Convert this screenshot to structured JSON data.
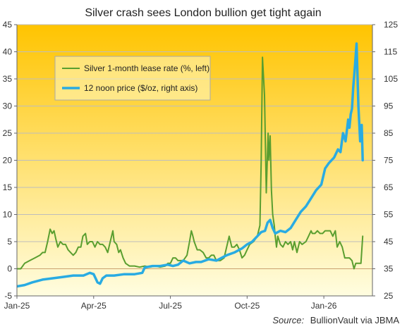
{
  "chart_data": {
    "type": "line",
    "title": "Silver crash sees London bullion get tight again",
    "source_label": "Source:",
    "source_text": "BullionVault via JBMA",
    "x_ticks": [
      "Jan-25",
      "Apr-25",
      "Jul-25",
      "Oct-25",
      "Jan-26"
    ],
    "x_tick_months": [
      0,
      3,
      6,
      9,
      12
    ],
    "xlim": [
      0,
      13.9
    ],
    "y_left": {
      "lim": [
        -5,
        45
      ],
      "ticks": [
        -5,
        0,
        5,
        10,
        15,
        20,
        25,
        30,
        35,
        40,
        45
      ]
    },
    "y_right": {
      "lim": [
        25,
        125
      ],
      "ticks": [
        25,
        35,
        45,
        55,
        65,
        75,
        85,
        95,
        105,
        115,
        125
      ]
    },
    "legend": {
      "placement": "top-left",
      "entries": [
        "Silver 1-month lease rate (%, left)",
        "12 noon price ($/oz, right axis)"
      ]
    },
    "series": [
      {
        "name": "Silver 1-month lease rate (%, left)",
        "axis": "left",
        "color": "#5a9e2f",
        "points": [
          [
            0,
            0
          ],
          [
            0.15,
            0
          ],
          [
            0.3,
            1
          ],
          [
            0.5,
            1.5
          ],
          [
            0.7,
            2
          ],
          [
            0.9,
            2.5
          ],
          [
            1.0,
            3
          ],
          [
            1.1,
            3
          ],
          [
            1.2,
            5
          ],
          [
            1.3,
            7.3
          ],
          [
            1.38,
            6.5
          ],
          [
            1.45,
            7
          ],
          [
            1.52,
            5.5
          ],
          [
            1.6,
            4
          ],
          [
            1.7,
            5
          ],
          [
            1.8,
            4.5
          ],
          [
            1.9,
            4.5
          ],
          [
            2.0,
            3.5
          ],
          [
            2.1,
            3
          ],
          [
            2.2,
            2.5
          ],
          [
            2.3,
            3
          ],
          [
            2.4,
            4
          ],
          [
            2.5,
            4
          ],
          [
            2.58,
            6
          ],
          [
            2.68,
            6.5
          ],
          [
            2.75,
            4.5
          ],
          [
            2.85,
            5
          ],
          [
            2.95,
            5
          ],
          [
            3.05,
            4
          ],
          [
            3.15,
            5
          ],
          [
            3.25,
            4.5
          ],
          [
            3.35,
            4.5
          ],
          [
            3.45,
            4
          ],
          [
            3.55,
            3
          ],
          [
            3.65,
            5
          ],
          [
            3.75,
            7
          ],
          [
            3.8,
            5
          ],
          [
            3.9,
            4.5
          ],
          [
            3.98,
            3
          ],
          [
            4.05,
            3.5
          ],
          [
            4.15,
            2
          ],
          [
            4.25,
            1
          ],
          [
            4.4,
            0.5
          ],
          [
            4.6,
            0.5
          ],
          [
            4.8,
            0.3
          ],
          [
            5.0,
            0.5
          ],
          [
            5.2,
            0.3
          ],
          [
            5.4,
            0.5
          ],
          [
            5.6,
            0.3
          ],
          [
            5.8,
            0.5
          ],
          [
            5.9,
            1
          ],
          [
            6.0,
            1
          ],
          [
            6.1,
            2
          ],
          [
            6.2,
            2
          ],
          [
            6.3,
            1.5
          ],
          [
            6.5,
            1.5
          ],
          [
            6.65,
            2.5
          ],
          [
            6.75,
            5
          ],
          [
            6.82,
            7
          ],
          [
            6.88,
            6
          ],
          [
            6.93,
            5
          ],
          [
            7.05,
            3.5
          ],
          [
            7.15,
            3.5
          ],
          [
            7.28,
            3
          ],
          [
            7.4,
            2
          ],
          [
            7.5,
            2
          ],
          [
            7.6,
            2.5
          ],
          [
            7.7,
            2.5
          ],
          [
            7.8,
            1.5
          ],
          [
            7.95,
            1.5
          ],
          [
            8.1,
            2
          ],
          [
            8.2,
            4
          ],
          [
            8.3,
            6
          ],
          [
            8.4,
            4
          ],
          [
            8.5,
            4
          ],
          [
            8.6,
            4.5
          ],
          [
            8.7,
            3.5
          ],
          [
            8.8,
            2
          ],
          [
            8.9,
            2.5
          ],
          [
            9.0,
            3.5
          ],
          [
            9.1,
            4.5
          ],
          [
            9.25,
            5
          ],
          [
            9.4,
            6
          ],
          [
            9.5,
            8
          ],
          [
            9.55,
            20
          ],
          [
            9.6,
            39
          ],
          [
            9.68,
            32
          ],
          [
            9.75,
            14
          ],
          [
            9.82,
            25
          ],
          [
            9.85,
            20
          ],
          [
            9.9,
            24.5
          ],
          [
            9.95,
            14.5
          ],
          [
            10.0,
            10
          ],
          [
            10.06,
            8
          ],
          [
            10.1,
            6
          ],
          [
            10.15,
            4
          ],
          [
            10.2,
            6
          ],
          [
            10.3,
            4.5
          ],
          [
            10.4,
            4
          ],
          [
            10.5,
            5
          ],
          [
            10.6,
            4.5
          ],
          [
            10.7,
            5
          ],
          [
            10.78,
            3.5
          ],
          [
            10.85,
            5
          ],
          [
            10.95,
            3
          ],
          [
            11.05,
            5
          ],
          [
            11.15,
            4.5
          ],
          [
            11.3,
            5
          ],
          [
            11.4,
            6
          ],
          [
            11.5,
            7
          ],
          [
            11.55,
            6.5
          ],
          [
            11.65,
            6.5
          ],
          [
            11.75,
            7
          ],
          [
            11.85,
            6.5
          ],
          [
            11.95,
            6.5
          ],
          [
            12.05,
            7
          ],
          [
            12.15,
            7
          ],
          [
            12.25,
            7
          ],
          [
            12.35,
            6
          ],
          [
            12.45,
            7
          ],
          [
            12.52,
            4
          ],
          [
            12.62,
            5
          ],
          [
            12.72,
            4
          ],
          [
            12.82,
            2
          ],
          [
            12.92,
            2
          ],
          [
            13.0,
            2
          ],
          [
            13.1,
            1.5
          ],
          [
            13.18,
            0
          ],
          [
            13.25,
            1
          ],
          [
            13.35,
            1
          ],
          [
            13.45,
            1
          ],
          [
            13.52,
            6
          ]
        ]
      },
      {
        "name": "12 noon price ($/oz, right axis)",
        "axis": "right",
        "color": "#29abe2",
        "points": [
          [
            0,
            28.5
          ],
          [
            0.3,
            29
          ],
          [
            0.6,
            30
          ],
          [
            1.0,
            31
          ],
          [
            1.4,
            31.5
          ],
          [
            1.8,
            32
          ],
          [
            2.2,
            32.5
          ],
          [
            2.6,
            32.5
          ],
          [
            2.85,
            33.5
          ],
          [
            3.0,
            33
          ],
          [
            3.15,
            30
          ],
          [
            3.25,
            29.5
          ],
          [
            3.35,
            31.5
          ],
          [
            3.5,
            32.5
          ],
          [
            3.8,
            32.5
          ],
          [
            4.2,
            33
          ],
          [
            4.6,
            33
          ],
          [
            4.9,
            33.5
          ],
          [
            5.0,
            35.5
          ],
          [
            5.3,
            36
          ],
          [
            5.6,
            36
          ],
          [
            5.9,
            36.5
          ],
          [
            6.1,
            36
          ],
          [
            6.3,
            36.5
          ],
          [
            6.5,
            38
          ],
          [
            6.75,
            37
          ],
          [
            7.0,
            37.5
          ],
          [
            7.2,
            37.5
          ],
          [
            7.5,
            38.5
          ],
          [
            7.8,
            38
          ],
          [
            8.0,
            39
          ],
          [
            8.2,
            40
          ],
          [
            8.5,
            41
          ],
          [
            8.8,
            42.5
          ],
          [
            9.0,
            44
          ],
          [
            9.2,
            45
          ],
          [
            9.4,
            47
          ],
          [
            9.55,
            48.5
          ],
          [
            9.7,
            49
          ],
          [
            9.8,
            52
          ],
          [
            9.9,
            53
          ],
          [
            10.0,
            50
          ],
          [
            10.1,
            48
          ],
          [
            10.3,
            49
          ],
          [
            10.5,
            48.5
          ],
          [
            10.7,
            50
          ],
          [
            10.9,
            53
          ],
          [
            11.1,
            56
          ],
          [
            11.3,
            58
          ],
          [
            11.5,
            61
          ],
          [
            11.7,
            64
          ],
          [
            11.9,
            66
          ],
          [
            12.05,
            72
          ],
          [
            12.2,
            74
          ],
          [
            12.4,
            76
          ],
          [
            12.55,
            79
          ],
          [
            12.65,
            78
          ],
          [
            12.75,
            85
          ],
          [
            12.85,
            82
          ],
          [
            12.95,
            90
          ],
          [
            13.0,
            87
          ],
          [
            13.05,
            92
          ],
          [
            13.1,
            94
          ],
          [
            13.15,
            102
          ],
          [
            13.22,
            110
          ],
          [
            13.28,
            118
          ],
          [
            13.35,
            95
          ],
          [
            13.42,
            82
          ],
          [
            13.48,
            88
          ],
          [
            13.52,
            75
          ]
        ]
      }
    ]
  },
  "colors": {
    "grid": "#bdbdbd",
    "axis": "#666666",
    "zero_line": "#c9a070",
    "bg_top": "#ffc400",
    "bg_bottom": "#fffde0"
  }
}
